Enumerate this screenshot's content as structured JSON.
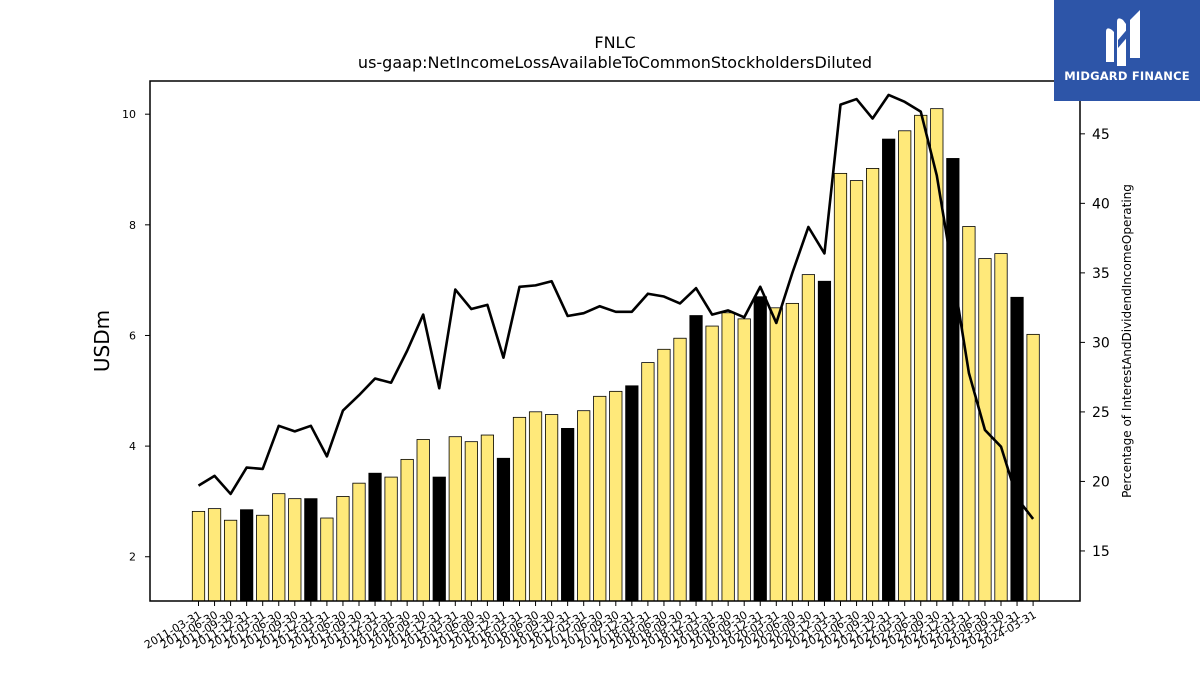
{
  "brand": {
    "name": "MIDGARD FINANCE",
    "logo_icon": "midgard-m-icon",
    "background_color": "#2d55a8"
  },
  "chart_data": {
    "type": "bar",
    "title": "FNLC",
    "subtitle": "us-gaap:NetIncomeLossAvailableToCommonStockholdersDiluted",
    "ylabel": "USDm",
    "y2label": "Percentage of InterestAndDividendIncomeOperating",
    "ylim": [
      1.2,
      10.6
    ],
    "y2lim": [
      11.4,
      48.8
    ],
    "yticks": [
      2,
      4,
      6,
      8,
      10
    ],
    "y2ticks": [
      15,
      20,
      25,
      30,
      35,
      40,
      45
    ],
    "colors": {
      "bar_default": "#ffe97a",
      "bar_q4": "#000000",
      "line": "#000000"
    },
    "categories": [
      "2011-03-31",
      "2011-06-30",
      "2011-09-30",
      "2011-12-31",
      "2012-03-31",
      "2012-06-30",
      "2012-09-30",
      "2012-12-31",
      "2013-03-31",
      "2013-06-30",
      "2013-09-30",
      "2013-12-31",
      "2014-03-31",
      "2014-06-30",
      "2014-09-30",
      "2014-12-31",
      "2015-03-31",
      "2015-06-30",
      "2015-09-30",
      "2015-12-31",
      "2016-03-31",
      "2016-06-30",
      "2016-09-30",
      "2016-12-31",
      "2017-03-31",
      "2017-06-30",
      "2017-09-30",
      "2017-12-31",
      "2018-03-31",
      "2018-06-30",
      "2018-09-30",
      "2018-12-31",
      "2019-03-31",
      "2019-06-30",
      "2019-09-30",
      "2019-12-31",
      "2020-03-31",
      "2020-06-30",
      "2020-09-30",
      "2020-12-31",
      "2021-03-31",
      "2021-06-30",
      "2021-09-30",
      "2021-12-31",
      "2022-03-31",
      "2022-06-30",
      "2022-09-30",
      "2022-12-31",
      "2023-03-31",
      "2023-06-30",
      "2023-09-30",
      "2023-12-31",
      "2024-03-31"
    ],
    "series": [
      {
        "kind": "bar",
        "axis": "left",
        "values": [
          2.82,
          2.87,
          2.66,
          2.85,
          2.75,
          3.14,
          3.05,
          3.05,
          2.7,
          3.09,
          3.33,
          3.51,
          3.44,
          3.76,
          4.12,
          3.44,
          4.17,
          4.08,
          4.2,
          3.78,
          4.52,
          4.62,
          4.57,
          4.32,
          4.64,
          4.9,
          4.99,
          5.09,
          5.51,
          5.75,
          5.95,
          6.36,
          6.17,
          6.41,
          6.3,
          6.7,
          6.5,
          6.58,
          7.1,
          6.98,
          8.93,
          8.8,
          9.02,
          9.55,
          9.7,
          9.98,
          10.1,
          9.2,
          7.97,
          7.39,
          7.48,
          6.69,
          6.02
        ],
        "highlight": [
          false,
          false,
          false,
          true,
          false,
          false,
          false,
          true,
          false,
          false,
          false,
          true,
          false,
          false,
          false,
          true,
          false,
          false,
          false,
          true,
          false,
          false,
          false,
          true,
          false,
          false,
          false,
          true,
          false,
          false,
          false,
          true,
          false,
          false,
          false,
          true,
          false,
          false,
          false,
          true,
          false,
          false,
          false,
          true,
          false,
          false,
          false,
          true,
          false,
          false,
          false,
          true,
          false
        ]
      },
      {
        "kind": "line",
        "axis": "right",
        "values": [
          19.7,
          20.4,
          19.1,
          21.0,
          20.9,
          24.0,
          23.6,
          24.0,
          21.8,
          25.1,
          26.2,
          27.4,
          27.1,
          29.4,
          32.0,
          26.7,
          33.8,
          32.4,
          32.7,
          28.9,
          34.0,
          34.1,
          34.4,
          31.9,
          32.1,
          32.6,
          32.2,
          32.2,
          33.5,
          33.3,
          32.8,
          33.9,
          32.0,
          32.3,
          31.8,
          34.0,
          31.4,
          35.0,
          38.3,
          36.4,
          47.1,
          47.5,
          46.1,
          47.8,
          47.3,
          46.6,
          42.0,
          35.0,
          27.8,
          23.7,
          22.5,
          18.8,
          17.3
        ]
      }
    ]
  }
}
